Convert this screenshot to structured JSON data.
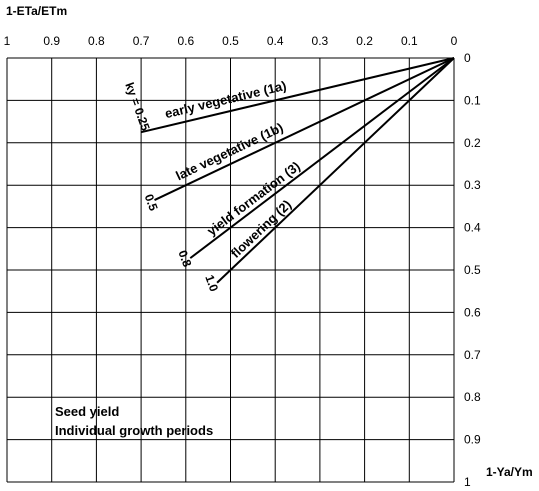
{
  "chart_data": {
    "type": "line",
    "x_axis": {
      "title": "1-ETa/ETm",
      "range": [
        1,
        0
      ],
      "ticks": [
        "1",
        "0.9",
        "0.8",
        "0.7",
        "0.6",
        "0.5",
        "0.4",
        "0.3",
        "0.2",
        "0.1",
        "0"
      ]
    },
    "y_axis": {
      "title": "1-Ya/Ym",
      "range": [
        0,
        1
      ],
      "ticks": [
        "0",
        "0.1",
        "0.2",
        "0.3",
        "0.4",
        "0.5",
        "0.6",
        "0.7",
        "0.8",
        "0.9",
        "1"
      ]
    },
    "grid": true,
    "series": [
      {
        "name": "early vegetative (1a)",
        "ky_label": "ky = 0.25",
        "x": [
          0,
          0.7
        ],
        "y": [
          0,
          0.175
        ]
      },
      {
        "name": "late vegetative (1b)",
        "ky_label": "0.5",
        "x": [
          0,
          0.67
        ],
        "y": [
          0,
          0.335
        ]
      },
      {
        "name": "yield formation (3)",
        "ky_label": "0.8",
        "x": [
          0,
          0.59
        ],
        "y": [
          0,
          0.472
        ]
      },
      {
        "name": "flowering (2)",
        "ky_label": "1.0",
        "x": [
          0,
          0.53
        ],
        "y": [
          0,
          0.53
        ]
      }
    ],
    "annotations": [
      "Seed yield",
      "Individual growth periods"
    ]
  }
}
